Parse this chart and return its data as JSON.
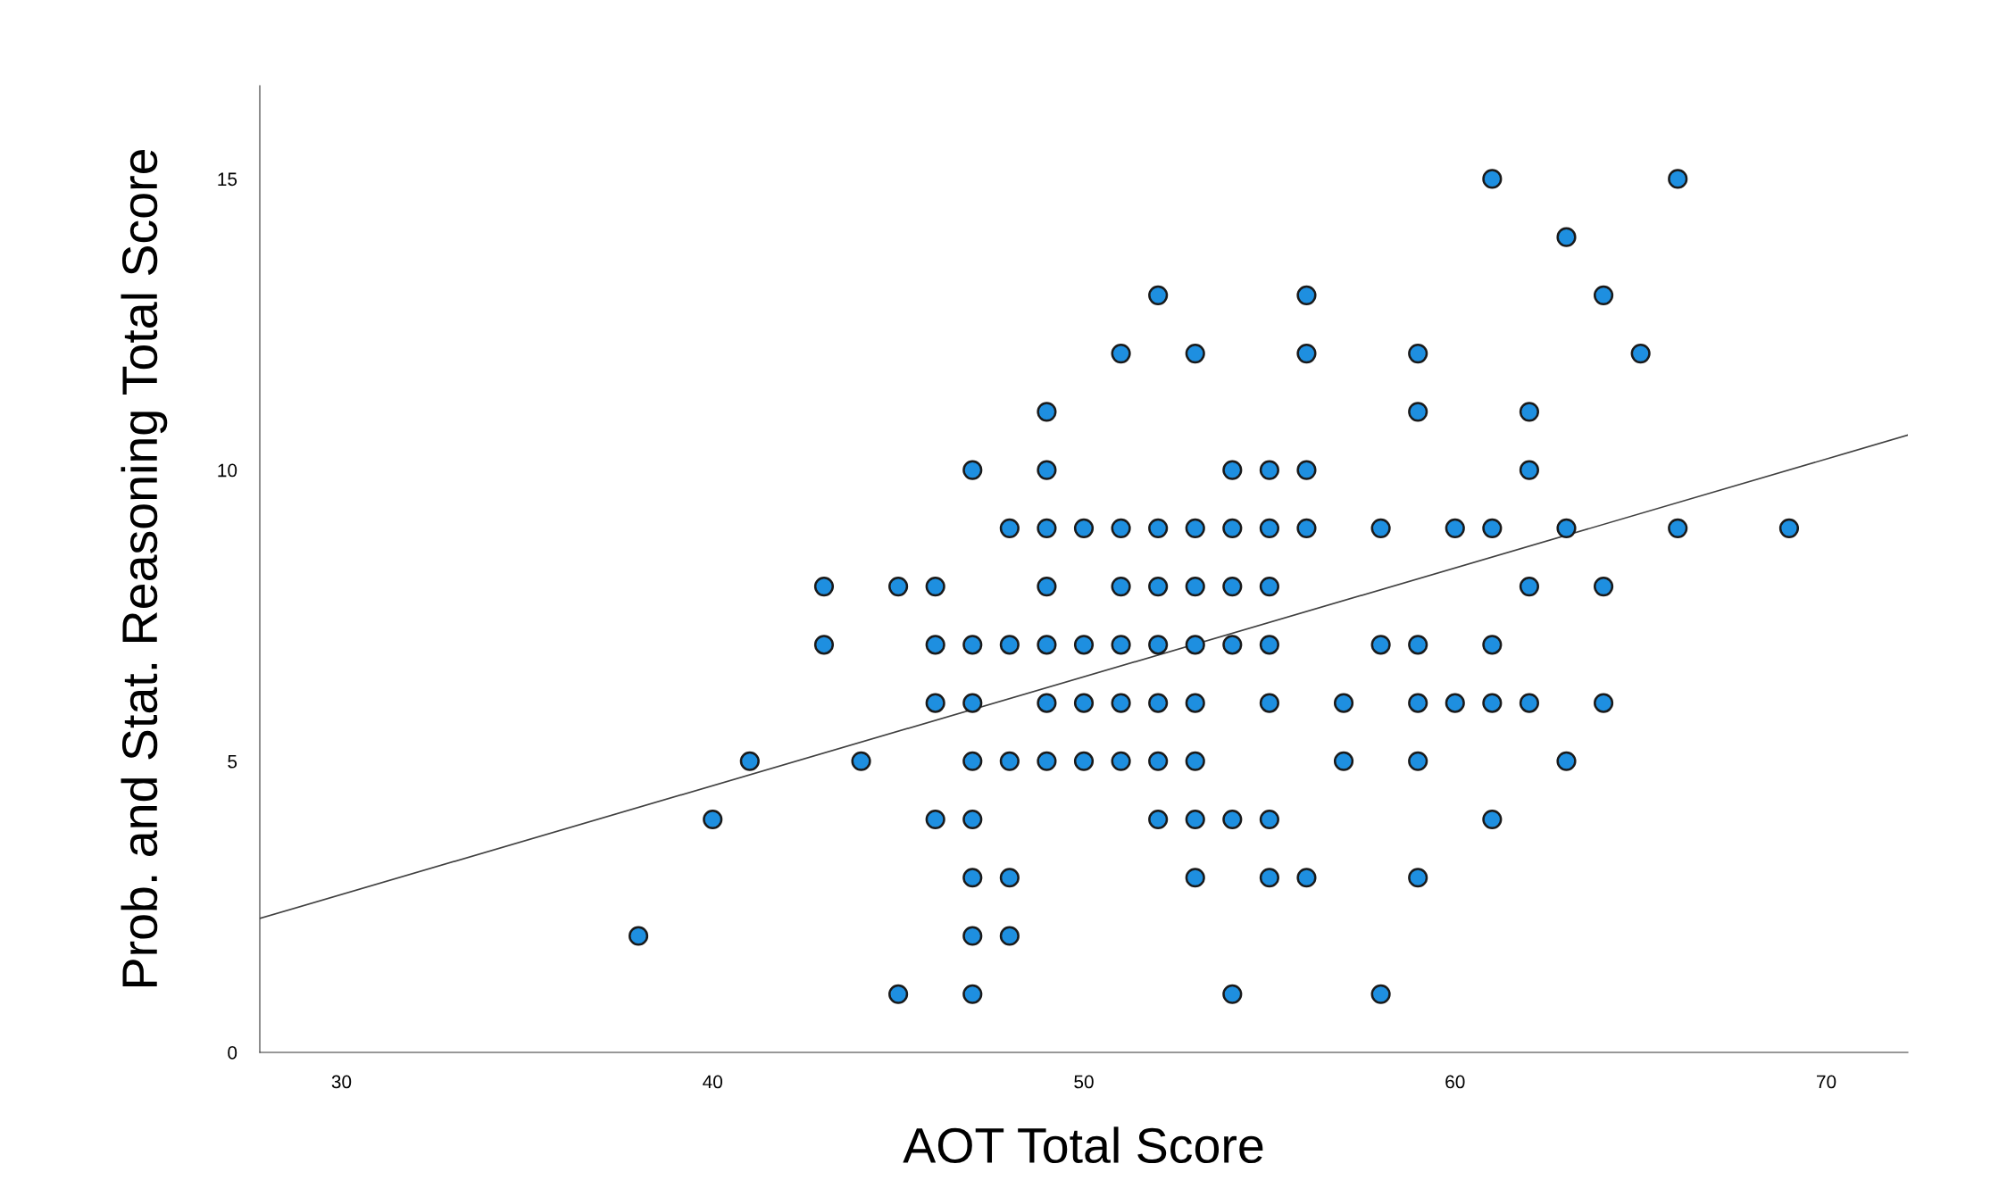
{
  "chart_data": {
    "type": "scatter",
    "xlabel": "AOT Total Score",
    "ylabel": "Prob. and Stat. Reasoning Total Score",
    "xlim": [
      27.8,
      72.2
    ],
    "ylim": [
      0,
      16.6
    ],
    "xticks": [
      30,
      40,
      50,
      60,
      70
    ],
    "yticks": [
      0,
      5,
      10,
      15
    ],
    "grid": false,
    "marker": "circle",
    "series": [
      {
        "color": "#1e8fe0",
        "x": [
          38,
          40,
          41,
          43,
          43,
          44,
          45,
          45,
          46,
          46,
          46,
          46,
          47,
          47,
          47,
          47,
          47,
          47,
          47,
          47,
          48,
          48,
          48,
          48,
          48,
          49,
          49,
          49,
          49,
          49,
          49,
          49,
          50,
          50,
          50,
          50,
          51,
          51,
          51,
          51,
          51,
          51,
          52,
          52,
          52,
          52,
          52,
          52,
          52,
          53,
          53,
          53,
          53,
          53,
          53,
          53,
          53,
          54,
          54,
          54,
          54,
          54,
          54,
          55,
          55,
          55,
          55,
          55,
          55,
          55,
          56,
          56,
          56,
          56,
          56,
          57,
          57,
          58,
          58,
          58,
          59,
          59,
          59,
          59,
          59,
          59,
          60,
          60,
          61,
          61,
          61,
          61,
          61,
          62,
          62,
          62,
          62,
          63,
          63,
          63,
          64,
          64,
          64,
          65,
          66,
          66,
          69
        ],
        "values": [
          2,
          4,
          5,
          8,
          7,
          5,
          8,
          1,
          8,
          7,
          6,
          4,
          10,
          7,
          6,
          5,
          4,
          3,
          2,
          1,
          9,
          7,
          5,
          3,
          2,
          11,
          10,
          9,
          8,
          7,
          6,
          5,
          9,
          7,
          6,
          5,
          12,
          9,
          8,
          7,
          6,
          5,
          13,
          9,
          8,
          7,
          6,
          5,
          4,
          12,
          9,
          8,
          7,
          6,
          5,
          4,
          3,
          10,
          9,
          8,
          7,
          4,
          1,
          10,
          9,
          8,
          7,
          6,
          4,
          3,
          13,
          12,
          10,
          9,
          3,
          6,
          5,
          9,
          7,
          1,
          12,
          11,
          7,
          6,
          5,
          3,
          9,
          6,
          15,
          9,
          7,
          6,
          4,
          11,
          10,
          8,
          6,
          14,
          9,
          5,
          13,
          8,
          6,
          12,
          15,
          9,
          9
        ]
      },
      {
        "type": "line",
        "color": "#404040",
        "line_style": "solid",
        "marker": "none",
        "x": [
          27.8,
          72.2
        ],
        "values": [
          2.3,
          10.6
        ]
      }
    ]
  }
}
